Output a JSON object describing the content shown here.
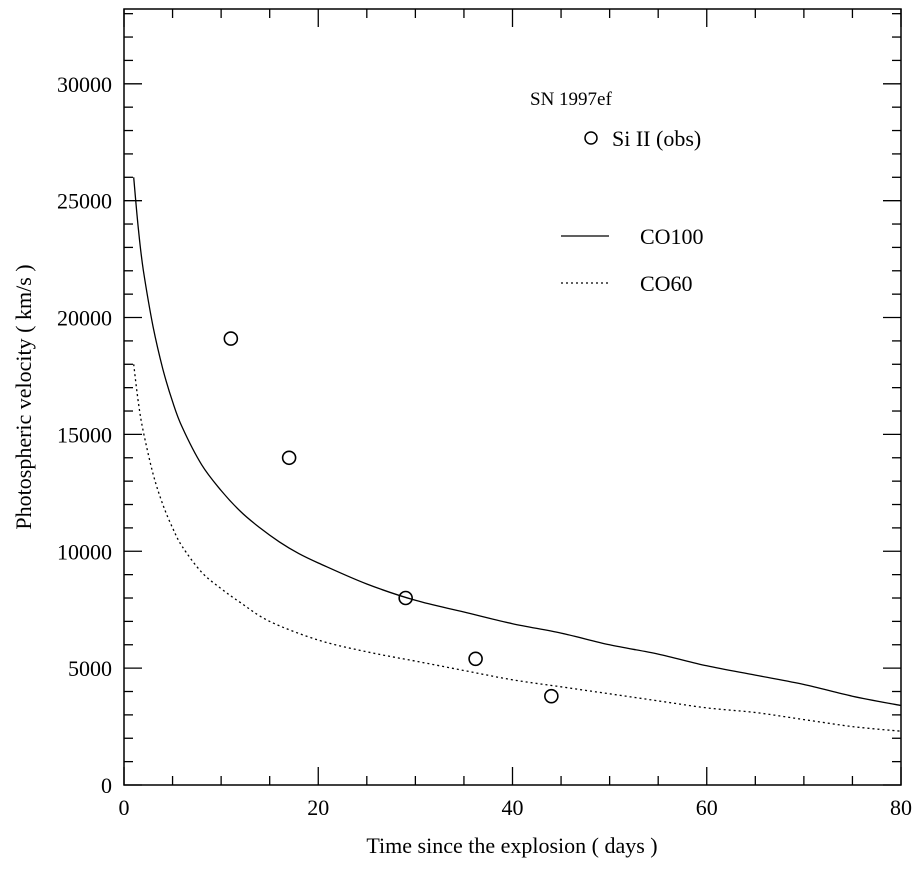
{
  "chart_data": {
    "type": "line",
    "title": "",
    "xlabel": "Time since the explosion ( days )",
    "ylabel": "Photospheric velocity ( km/s )",
    "xlim": [
      0,
      80
    ],
    "ylim": [
      0,
      30000
    ],
    "x_ticks": [
      0,
      20,
      40,
      60,
      80
    ],
    "y_ticks": [
      0,
      5000,
      10000,
      15000,
      20000,
      25000,
      30000
    ],
    "grid": false,
    "legend_position": "top-right",
    "annotation": "SN 1997ef",
    "series": [
      {
        "name": "Si II (obs)",
        "style": "open-circle",
        "x": [
          11,
          17,
          29,
          36.2,
          44
        ],
        "y": [
          19100,
          14000,
          8000,
          5400,
          3800
        ]
      },
      {
        "name": "CO100",
        "style": "solid",
        "x": [
          1,
          1.5,
          2,
          3,
          4,
          5,
          6,
          8,
          10,
          12,
          14,
          16,
          18,
          20,
          25,
          30,
          35,
          40,
          45,
          50,
          55,
          60,
          65,
          70,
          75,
          80
        ],
        "y": [
          26000,
          23700,
          22000,
          19600,
          17800,
          16400,
          15300,
          13700,
          12600,
          11700,
          11000,
          10400,
          9900,
          9500,
          8600,
          7900,
          7400,
          6900,
          6500,
          6000,
          5600,
          5100,
          4700,
          4300,
          3800,
          3400
        ]
      },
      {
        "name": "CO60",
        "style": "dotted",
        "x": [
          1,
          1.5,
          2,
          3,
          4,
          5,
          6,
          8,
          10,
          12,
          15,
          20,
          25,
          30,
          35,
          40,
          45,
          50,
          55,
          60,
          65,
          70,
          75,
          80
        ],
        "y": [
          18000,
          16300,
          15100,
          13300,
          12000,
          11000,
          10200,
          9100,
          8400,
          7800,
          7000,
          6200,
          5700,
          5300,
          4900,
          4500,
          4200,
          3900,
          3600,
          3300,
          3100,
          2800,
          2500,
          2300
        ]
      }
    ]
  }
}
